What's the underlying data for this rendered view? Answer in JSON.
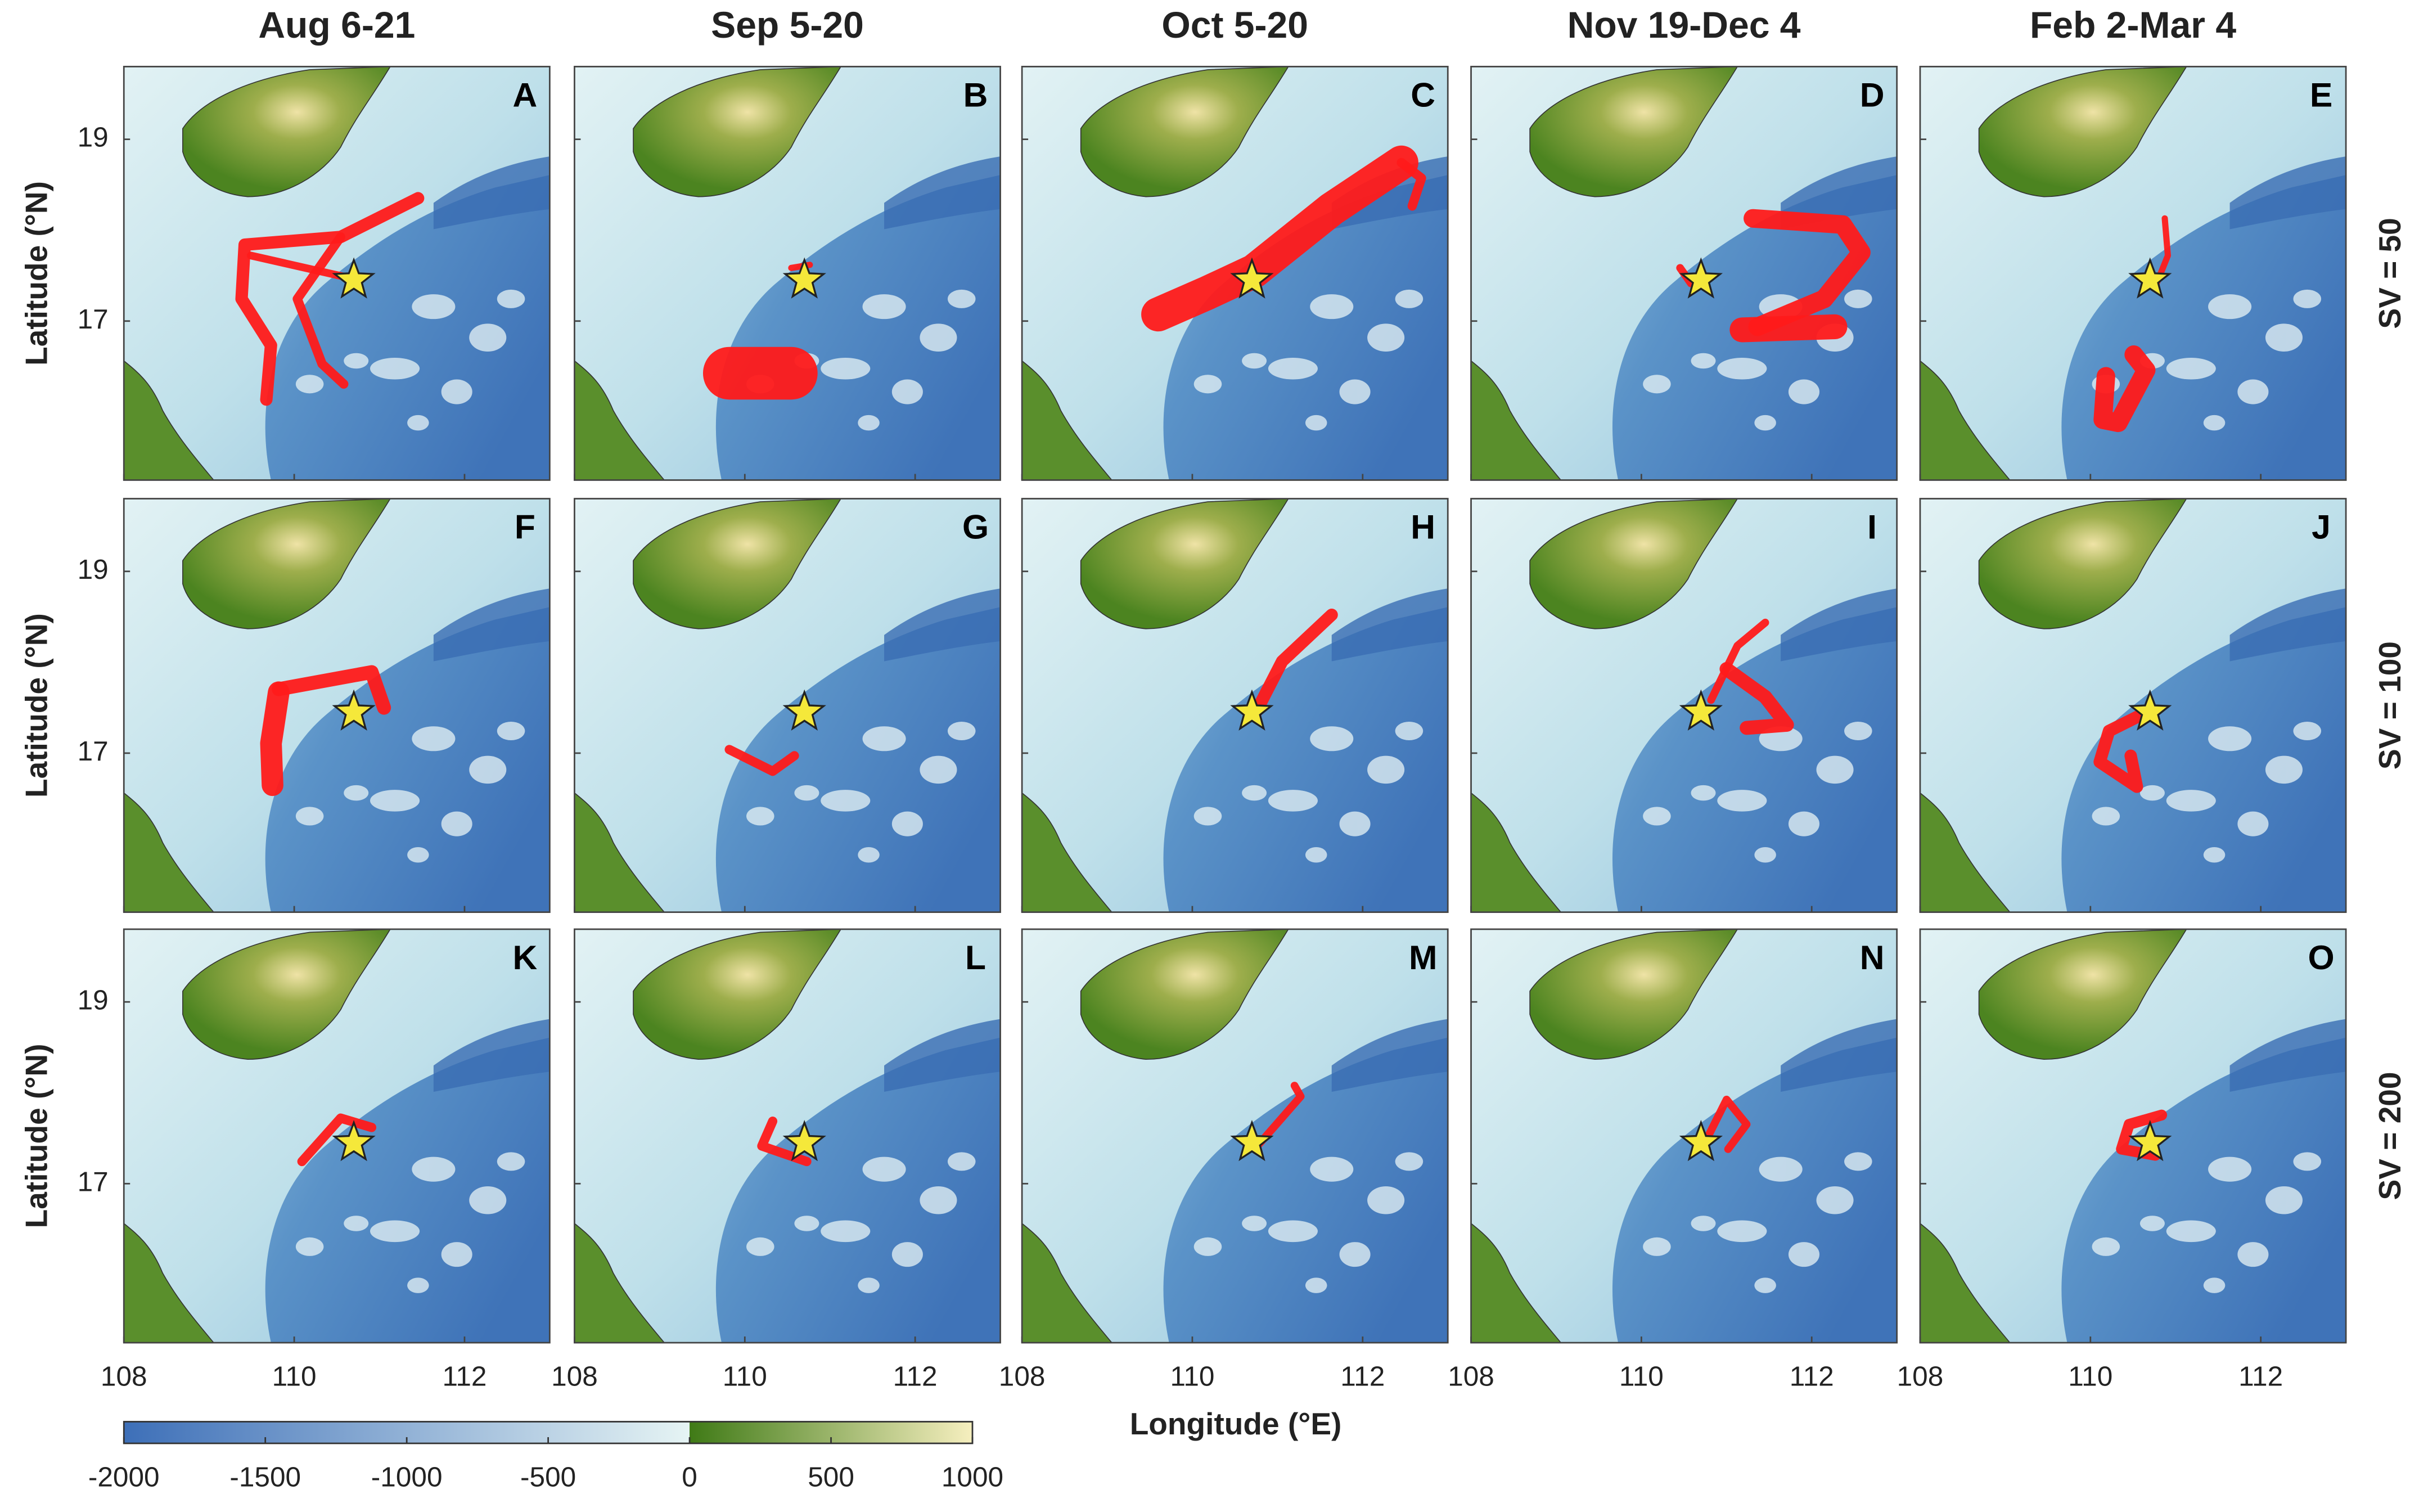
{
  "chart_data": {
    "type": "map",
    "columns": [
      "Aug 6-21",
      "Sep 5-20",
      "Oct 5-20",
      "Nov 19-Dec 4",
      "Feb 2-Mar 4"
    ],
    "rows": [
      "SV = 50",
      "SV = 100",
      "SV = 200"
    ],
    "panel_letters": [
      "A",
      "B",
      "C",
      "D",
      "E",
      "F",
      "G",
      "H",
      "I",
      "J",
      "K",
      "L",
      "M",
      "N",
      "O"
    ],
    "xlabel": "Longitude (°E)",
    "ylabel": "Latitude (°N)",
    "xlim": [
      108,
      113
    ],
    "xticks": [
      108,
      110,
      112
    ],
    "ylim": [
      15.25,
      19.8
    ],
    "yticks": [
      17,
      19
    ],
    "release_point": {
      "lon": 110.7,
      "lat": 17.45,
      "color": "#f5e83a"
    },
    "particle_color": "#ff1a1a",
    "colorbar": {
      "lim": [
        -2000,
        1000
      ],
      "ticks": [
        -2000,
        -1500,
        -1000,
        -500,
        0,
        500,
        1000
      ],
      "ocean_colors": [
        "#3d6fb8",
        "#e6f4f4"
      ],
      "land_colors": [
        "#3f7a16",
        "#f6efbf"
      ]
    }
  }
}
